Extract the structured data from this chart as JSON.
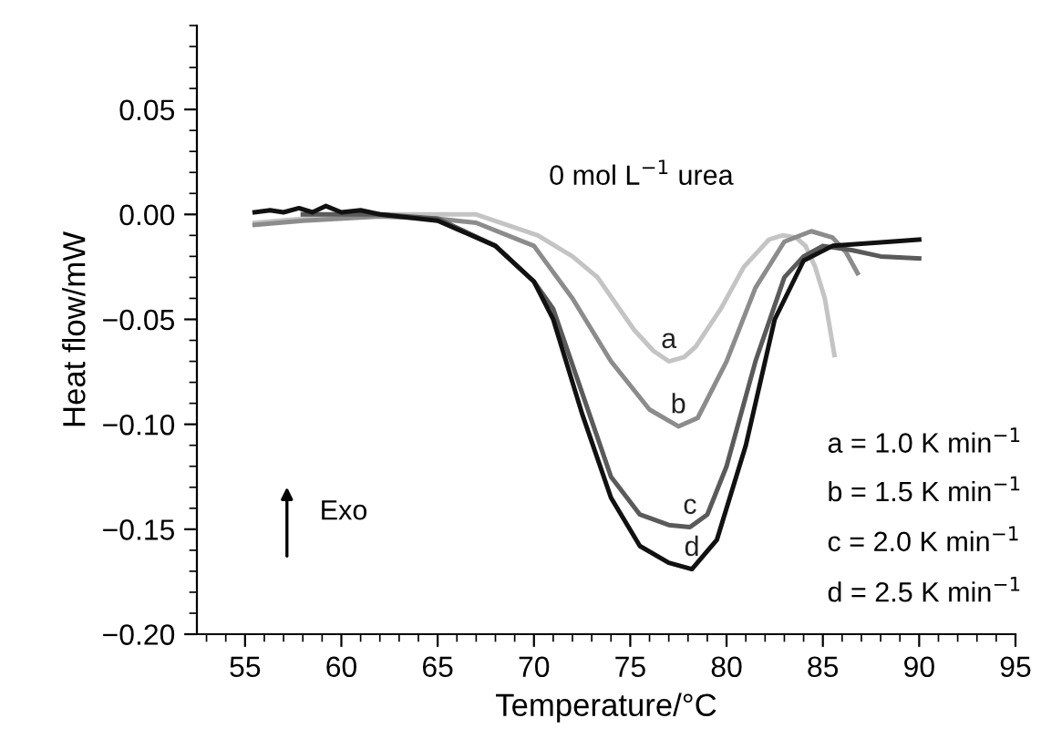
{
  "chart_data": {
    "type": "line",
    "xlabel": "Temperature/°C",
    "ylabel": "Heat flow/mW",
    "xlim": [
      52.5,
      95
    ],
    "ylim": [
      -0.2,
      0.09
    ],
    "xticks": [
      55,
      60,
      65,
      70,
      75,
      80,
      85,
      90,
      95
    ],
    "yticks": [
      {
        "value": -0.2,
        "label": "−0.20"
      },
      {
        "value": -0.15,
        "label": "−0.15"
      },
      {
        "value": -0.1,
        "label": "−0.10"
      },
      {
        "value": -0.05,
        "label": "−0.05"
      },
      {
        "value": 0,
        "label": "0.00"
      },
      {
        "value": 0.05,
        "label": "0.05"
      }
    ],
    "grid": false,
    "legend": false,
    "marker": "none",
    "line_style": "solid",
    "annotations": [
      "0 mol L$^{−1}$ urea",
      "a = 1.0 K min$^{−1}$",
      "b = 1.5 K min$^{−1}$",
      "c = 2.0 K min$^{−1}$",
      "d = 2.5 K min$^{−1}$",
      "Exo"
    ],
    "series": [
      {
        "name": "a",
        "color": "#c4c4c4",
        "x": [
          55.5,
          58,
          62,
          67,
          70.2,
          72,
          73.3,
          75.2,
          76.2,
          77.0,
          77.8,
          78.4,
          79.7,
          80.9,
          82.2,
          82.9,
          83.6,
          84.1,
          84.6,
          85.1,
          85.6
        ],
        "values": [
          -0.004,
          -0.002,
          0,
          0,
          -0.01,
          -0.02,
          -0.03,
          -0.055,
          -0.065,
          -0.07,
          -0.068,
          -0.063,
          -0.045,
          -0.025,
          -0.012,
          -0.01,
          -0.011,
          -0.015,
          -0.025,
          -0.04,
          -0.067
        ]
      },
      {
        "name": "b",
        "color": "#8c8c8c",
        "x": [
          55.5,
          58,
          62,
          65,
          67,
          70,
          72,
          74,
          76,
          77.5,
          78.5,
          80,
          81.5,
          83,
          84.4,
          85.5,
          86.2,
          86.8
        ],
        "values": [
          -0.005,
          -0.003,
          -0.001,
          -0.002,
          -0.004,
          -0.015,
          -0.04,
          -0.07,
          -0.093,
          -0.101,
          -0.097,
          -0.07,
          -0.035,
          -0.013,
          -0.008,
          -0.011,
          -0.018,
          -0.028
        ]
      },
      {
        "name": "c",
        "color": "#5a5a5a",
        "x": [
          58,
          62,
          65,
          68,
          70,
          71,
          72.5,
          74,
          75.5,
          77,
          78.1,
          79,
          80,
          81.5,
          83,
          84,
          85,
          86.5,
          88,
          90
        ],
        "values": [
          0,
          0,
          -0.002,
          -0.015,
          -0.032,
          -0.045,
          -0.085,
          -0.125,
          -0.143,
          -0.148,
          -0.149,
          -0.143,
          -0.12,
          -0.07,
          -0.03,
          -0.02,
          -0.015,
          -0.017,
          -0.02,
          -0.021
        ]
      },
      {
        "name": "d",
        "color": "#111111",
        "x": [
          55.5,
          56.3,
          57,
          57.8,
          58.5,
          59.2,
          60,
          61,
          62,
          65,
          68,
          70,
          71,
          72.5,
          74,
          75.5,
          77,
          78.2,
          79.5,
          81,
          82.5,
          84,
          85.5,
          87,
          88.5,
          90
        ],
        "values": [
          0.001,
          0.002,
          0.001,
          0.003,
          0.001,
          0.004,
          0.001,
          0.002,
          0,
          -0.003,
          -0.015,
          -0.032,
          -0.05,
          -0.095,
          -0.135,
          -0.158,
          -0.166,
          -0.169,
          -0.155,
          -0.11,
          -0.05,
          -0.022,
          -0.015,
          -0.014,
          -0.013,
          -0.012
        ]
      }
    ]
  }
}
